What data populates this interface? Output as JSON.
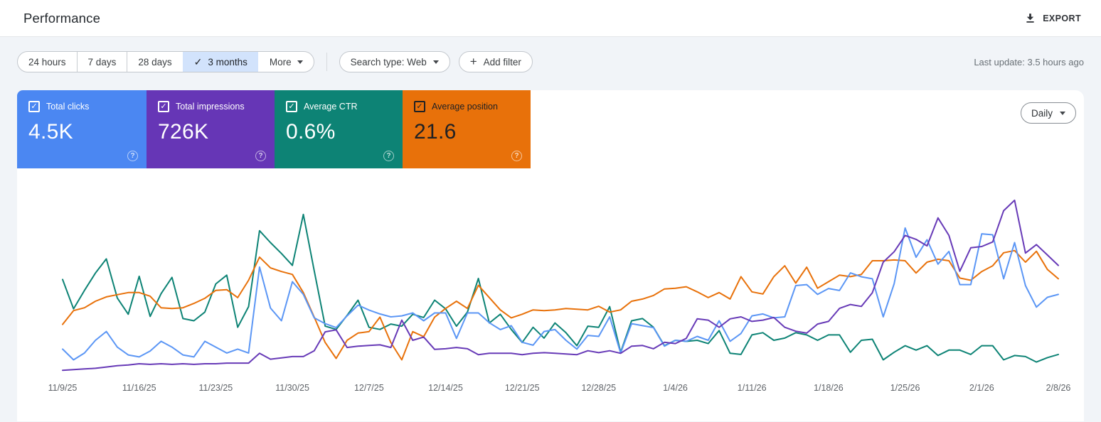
{
  "header": {
    "title": "Performance",
    "export_label": "EXPORT"
  },
  "toolbar": {
    "date_ranges": [
      {
        "label": "24 hours",
        "selected": false
      },
      {
        "label": "7 days",
        "selected": false
      },
      {
        "label": "28 days",
        "selected": false
      },
      {
        "label": "3 months",
        "selected": true
      }
    ],
    "more_label": "More",
    "search_type": "Search type: Web",
    "add_filter": "Add filter",
    "last_update": "Last update: 3.5 hours ago"
  },
  "metric_cards": [
    {
      "id": "total-clicks",
      "label": "Total clicks",
      "value": "4.5K",
      "checked": true,
      "color": "#4b87f2",
      "text_style": "light"
    },
    {
      "id": "total-impressions",
      "label": "Total impressions",
      "value": "726K",
      "checked": true,
      "color": "#6636b6",
      "text_style": "light"
    },
    {
      "id": "average-ctr",
      "label": "Average CTR",
      "value": "0.6%",
      "checked": true,
      "color": "#0d8375",
      "text_style": "light"
    },
    {
      "id": "average-position",
      "label": "Average position",
      "value": "21.6",
      "checked": true,
      "color": "#e8710a",
      "text_style": "dark"
    }
  ],
  "chart_controls": {
    "granularity": "Daily"
  },
  "chart_data": {
    "type": "line",
    "x_unit": "day",
    "start_date": "11/9/25",
    "end_date": "2/8/26",
    "points_per_series": 92,
    "grid": "off",
    "legend": "metric-cards-act-as-legend",
    "x_tick_labels": [
      "11/9/25",
      "11/16/25",
      "11/23/25",
      "11/30/25",
      "12/7/25",
      "12/14/25",
      "12/21/25",
      "12/28/25",
      "1/4/26",
      "1/11/26",
      "1/18/26",
      "1/25/26",
      "2/1/26",
      "2/8/26"
    ],
    "x_tick_day_indices": [
      0,
      7,
      14,
      21,
      28,
      35,
      42,
      49,
      56,
      63,
      70,
      77,
      84,
      91
    ],
    "draw_order": [
      2,
      3,
      0,
      1
    ],
    "series": [
      {
        "name": "Total clicks",
        "color": "#5b96f5",
        "ylim": [
          0,
          200
        ],
        "values": [
          31,
          20,
          27,
          40,
          49,
          33,
          25,
          23,
          29,
          39,
          33,
          25,
          23,
          39,
          33,
          27,
          31,
          27,
          115,
          73,
          60,
          100,
          87,
          63,
          57,
          53,
          65,
          76,
          71,
          67,
          64,
          65,
          68,
          60,
          68,
          68,
          42,
          68,
          68,
          58,
          51,
          55,
          38,
          35,
          49,
          51,
          40,
          31,
          45,
          44,
          64,
          27,
          57,
          55,
          53,
          34,
          40,
          39,
          44,
          40,
          60,
          39,
          47,
          65,
          67,
          63,
          64,
          96,
          97,
          87,
          93,
          91,
          109,
          105,
          103,
          64,
          98,
          155,
          125,
          143,
          118,
          131,
          97,
          97,
          149,
          148,
          103,
          140,
          96,
          74,
          84,
          87
        ]
      },
      {
        "name": "Total impressions",
        "color": "#673ab7",
        "ylim": [
          0,
          30000
        ],
        "values": [
          1400,
          1500,
          1600,
          1700,
          1900,
          2100,
          2200,
          2400,
          2300,
          2400,
          2300,
          2400,
          2300,
          2400,
          2400,
          2500,
          2500,
          2500,
          4000,
          3100,
          3300,
          3500,
          3500,
          4400,
          7300,
          7600,
          4900,
          5100,
          5200,
          5300,
          4900,
          9100,
          6000,
          6500,
          4600,
          4700,
          4900,
          4700,
          3800,
          4000,
          4000,
          4000,
          3800,
          4000,
          4100,
          4000,
          3900,
          3800,
          4400,
          4100,
          4400,
          4000,
          5100,
          5200,
          4700,
          5700,
          5500,
          6300,
          9300,
          9100,
          8000,
          9300,
          9600,
          8900,
          9100,
          9500,
          8000,
          7400,
          7100,
          8500,
          8900,
          10900,
          11500,
          11200,
          13300,
          18000,
          19600,
          22100,
          21500,
          20500,
          24800,
          22100,
          16600,
          20200,
          20400,
          21100,
          25900,
          27500,
          19400,
          20700,
          19100,
          17500
        ]
      },
      {
        "name": "Average CTR",
        "color": "#0d8375",
        "unit": "%",
        "ylim": [
          0,
          1.8
        ],
        "values": [
          0.92,
          0.65,
          0.82,
          0.98,
          1.11,
          0.75,
          0.6,
          0.95,
          0.58,
          0.79,
          0.94,
          0.56,
          0.54,
          0.62,
          0.88,
          0.96,
          0.48,
          0.67,
          1.37,
          1.26,
          1.16,
          1.05,
          1.52,
          1.0,
          0.49,
          0.46,
          0.59,
          0.73,
          0.48,
          0.46,
          0.51,
          0.49,
          0.6,
          0.57,
          0.73,
          0.65,
          0.49,
          0.62,
          0.93,
          0.52,
          0.6,
          0.46,
          0.34,
          0.48,
          0.38,
          0.52,
          0.43,
          0.31,
          0.49,
          0.48,
          0.67,
          0.25,
          0.54,
          0.56,
          0.48,
          0.31,
          0.36,
          0.35,
          0.36,
          0.33,
          0.45,
          0.24,
          0.23,
          0.41,
          0.43,
          0.36,
          0.38,
          0.43,
          0.41,
          0.36,
          0.41,
          0.41,
          0.25,
          0.36,
          0.37,
          0.18,
          0.25,
          0.31,
          0.27,
          0.31,
          0.22,
          0.27,
          0.27,
          0.23,
          0.31,
          0.31,
          0.18,
          0.22,
          0.21,
          0.16,
          0.2,
          0.23
        ]
      },
      {
        "name": "Average position",
        "color": "#e8710a",
        "ylim": [
          35,
          8
        ],
        "inverted_axis": true,
        "values": [
          27.4,
          25.5,
          25.1,
          24.2,
          23.6,
          23.3,
          23.0,
          23.0,
          23.5,
          25.1,
          25.2,
          25.1,
          24.5,
          23.8,
          22.7,
          22.6,
          23.7,
          21.3,
          18.1,
          19.6,
          20.1,
          20.5,
          23.0,
          26.4,
          29.9,
          32.1,
          29.6,
          28.6,
          28.4,
          26.4,
          29.9,
          32.3,
          28.4,
          29.1,
          26.4,
          25.2,
          24.2,
          25.2,
          22.0,
          23.7,
          25.4,
          26.5,
          26.0,
          25.4,
          25.5,
          25.4,
          25.2,
          25.3,
          25.4,
          24.9,
          25.7,
          25.4,
          24.2,
          23.9,
          23.4,
          22.5,
          22.4,
          22.2,
          22.9,
          23.7,
          23.0,
          23.9,
          20.8,
          22.9,
          23.2,
          20.8,
          19.3,
          21.7,
          19.5,
          22.4,
          21.5,
          20.6,
          20.8,
          20.5,
          18.6,
          18.6,
          18.5,
          18.6,
          20.3,
          18.8,
          18.4,
          18.6,
          21.0,
          21.3,
          20.1,
          19.3,
          17.5,
          17.2,
          18.8,
          17.3,
          19.8,
          21.1
        ]
      }
    ]
  }
}
